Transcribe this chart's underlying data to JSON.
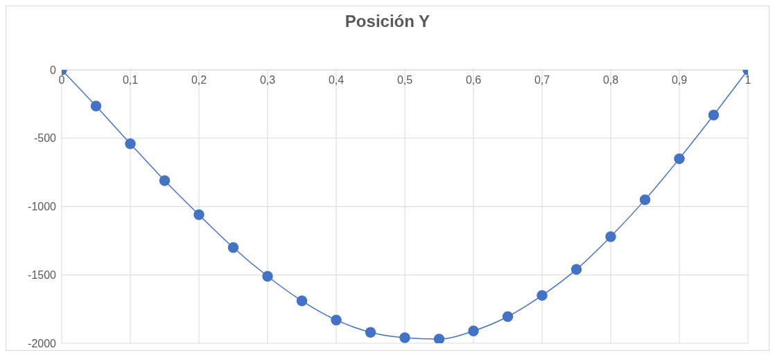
{
  "chart_data": {
    "type": "line",
    "title": "Posición Y",
    "x": [
      0,
      0.05,
      0.1,
      0.15,
      0.2,
      0.25,
      0.3,
      0.35,
      0.4,
      0.45,
      0.5,
      0.55,
      0.6,
      0.65,
      0.7,
      0.75,
      0.8,
      0.85,
      0.9,
      0.95,
      1
    ],
    "series": [
      {
        "color": "#4472c4",
        "values": [
          0,
          -265,
          -540,
          -810,
          -1060,
          -1300,
          -1510,
          -1690,
          -1830,
          -1920,
          -1960,
          -1970,
          -1910,
          -1805,
          -1650,
          -1460,
          -1220,
          -950,
          -650,
          -330,
          0
        ]
      }
    ],
    "xlim": [
      0,
      1
    ],
    "xticks": [
      0,
      {
        "value": 0.1,
        "label": "0,1"
      },
      {
        "value": 0.2,
        "label": "0,2"
      },
      {
        "value": 0.3,
        "label": "0,3"
      },
      {
        "value": 0.4,
        "label": "0,4"
      },
      {
        "value": 0.5,
        "label": "0,5"
      },
      {
        "value": 0.6,
        "label": "0,6"
      },
      {
        "value": 0.7,
        "label": "0,7"
      },
      {
        "value": 0.8,
        "label": "0,8"
      },
      {
        "value": 0.9,
        "label": "0,9"
      },
      1
    ],
    "ylim": [
      -2000,
      0
    ],
    "yticks": [
      -2000,
      -1500,
      -1000,
      -500,
      0
    ],
    "grid": true,
    "marker": "circle",
    "line_style": "solid"
  }
}
